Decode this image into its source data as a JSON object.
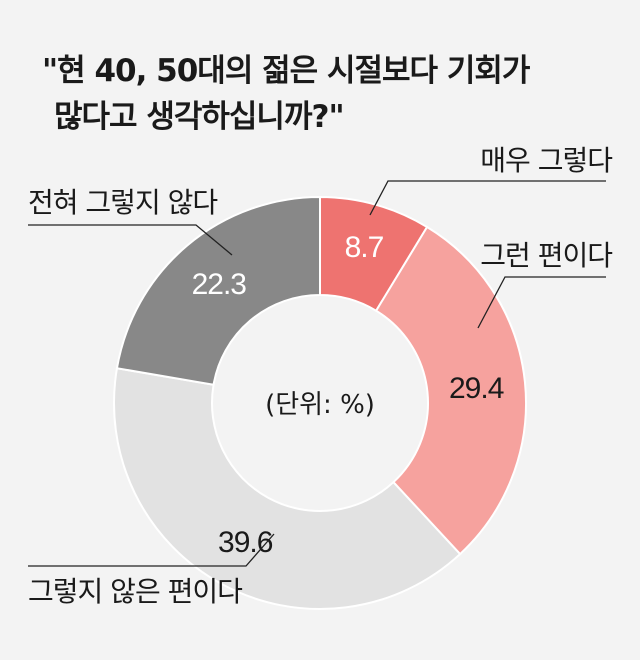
{
  "chart_data": {
    "type": "pie",
    "title_lines": [
      "\"현 40, 50대의 젊은 시절보다 기회가",
      "많다고 생각하십니까?\""
    ],
    "unit_label": "(단위: %)",
    "slices": [
      {
        "label": "매우 그렇다",
        "value": 8.7,
        "value_label": "8.7",
        "color": "#ee7370",
        "text_color": "#ffffff"
      },
      {
        "label": "그런 편이다",
        "value": 29.4,
        "value_label": "29.4",
        "color": "#f6a29e",
        "text_color": "#1a1a1a"
      },
      {
        "label": "그렇지 않은 편이다",
        "value": 39.6,
        "value_label": "39.6",
        "color": "#e2e2e2",
        "text_color": "#1a1a1a"
      },
      {
        "label": "전혀 그렇지 않다",
        "value": 22.3,
        "value_label": "22.3",
        "color": "#888888",
        "text_color": "#ffffff"
      }
    ]
  }
}
